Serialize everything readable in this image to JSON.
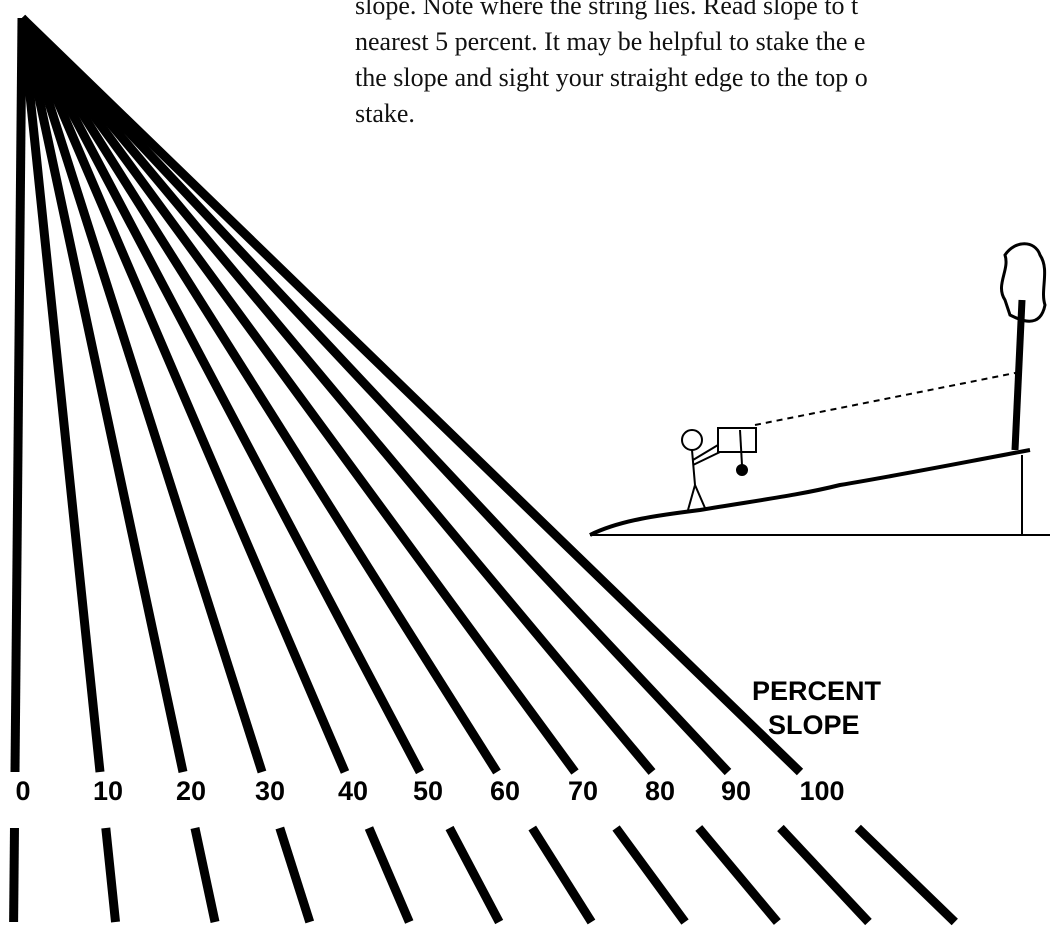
{
  "text_lines": [
    "slope.  Note where the string lies.  Read slope to t",
    "nearest 5 percent.   It may be helpful to stake the e",
    "the slope and sight your straight edge to the top o",
    "stake."
  ],
  "scale_title": [
    "PERCENT",
    "SLOPE"
  ],
  "scale_labels": [
    "0",
    "10",
    "20",
    "30",
    "40",
    "50",
    "60",
    "70",
    "80",
    "90",
    "100"
  ]
}
